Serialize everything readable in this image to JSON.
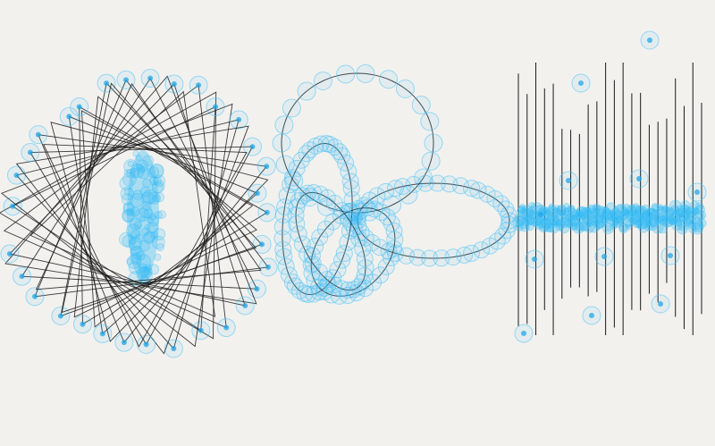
{
  "canvas": {
    "background": "#f2f1ee"
  },
  "palette": {
    "line": "#1a1a1a",
    "node_ring": "#4fc3f7",
    "node_fill": "#29b6f6",
    "node_dot": "#22a7e8"
  },
  "figures": [
    {
      "name": "rotating-triangles",
      "kind": "triangle-rosette",
      "triangle_count": 22
    },
    {
      "name": "circle-loops",
      "kind": "looping-curves",
      "loop_count": 4
    },
    {
      "name": "vertical-wave",
      "kind": "vertical-line-wave",
      "line_count": 22
    }
  ]
}
